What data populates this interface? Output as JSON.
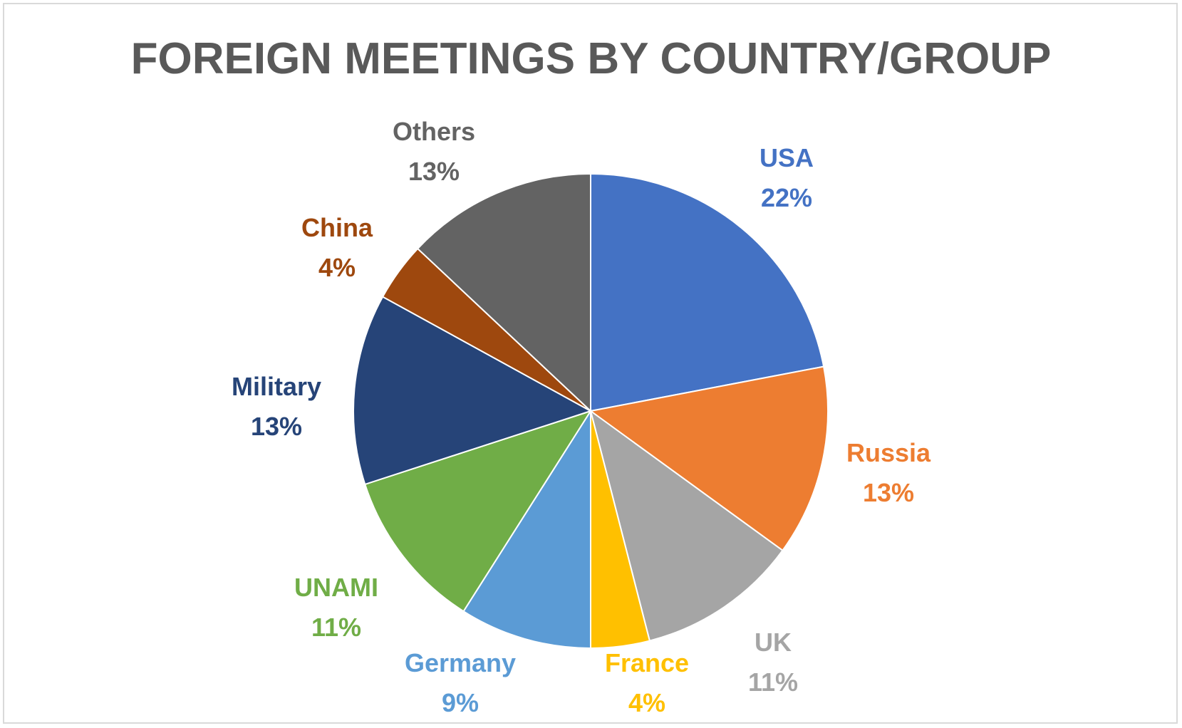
{
  "chart_data": {
    "type": "pie",
    "title": "FOREIGN MEETINGS BY COUNTRY/GROUP",
    "slices": [
      {
        "label": "USA",
        "value": 22,
        "display": "22%",
        "color": "#4472C4"
      },
      {
        "label": "Russia",
        "value": 13,
        "display": "13%",
        "color": "#ED7D31"
      },
      {
        "label": "UK",
        "value": 11,
        "display": "11%",
        "color": "#A5A5A5"
      },
      {
        "label": "France",
        "value": 4,
        "display": "4%",
        "color": "#FFC000"
      },
      {
        "label": "Germany",
        "value": 9,
        "display": "9%",
        "color": "#5B9BD5"
      },
      {
        "label": "UNAMI",
        "value": 11,
        "display": "11%",
        "color": "#70AD47"
      },
      {
        "label": "Military",
        "value": 13,
        "display": "13%",
        "color": "#264478"
      },
      {
        "label": "China",
        "value": 4,
        "display": "4%",
        "color": "#9E480E"
      },
      {
        "label": "Others",
        "value": 13,
        "display": "13%",
        "color": "#636363"
      }
    ]
  }
}
